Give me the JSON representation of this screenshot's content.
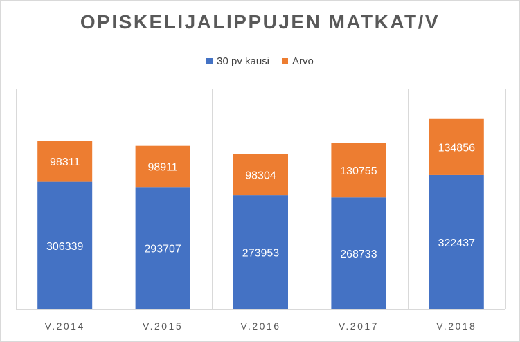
{
  "chart_data": {
    "type": "bar",
    "stacked": true,
    "title": "OPISKELIJALIPPUJEN MATKAT/V",
    "categories": [
      "V.2014",
      "V.2015",
      "V.2016",
      "V.2017",
      "V.2018"
    ],
    "series": [
      {
        "name": "30 pv kausi",
        "color": "#4472C4",
        "values": [
          306339,
          293707,
          273953,
          268733,
          322437
        ]
      },
      {
        "name": "Arvo",
        "color": "#ED7D31",
        "values": [
          98311,
          98911,
          98304,
          130755,
          134856
        ]
      }
    ],
    "ylim": [
      0,
      530000
    ],
    "legend_position": "top",
    "grid": false,
    "category_separators": true
  }
}
